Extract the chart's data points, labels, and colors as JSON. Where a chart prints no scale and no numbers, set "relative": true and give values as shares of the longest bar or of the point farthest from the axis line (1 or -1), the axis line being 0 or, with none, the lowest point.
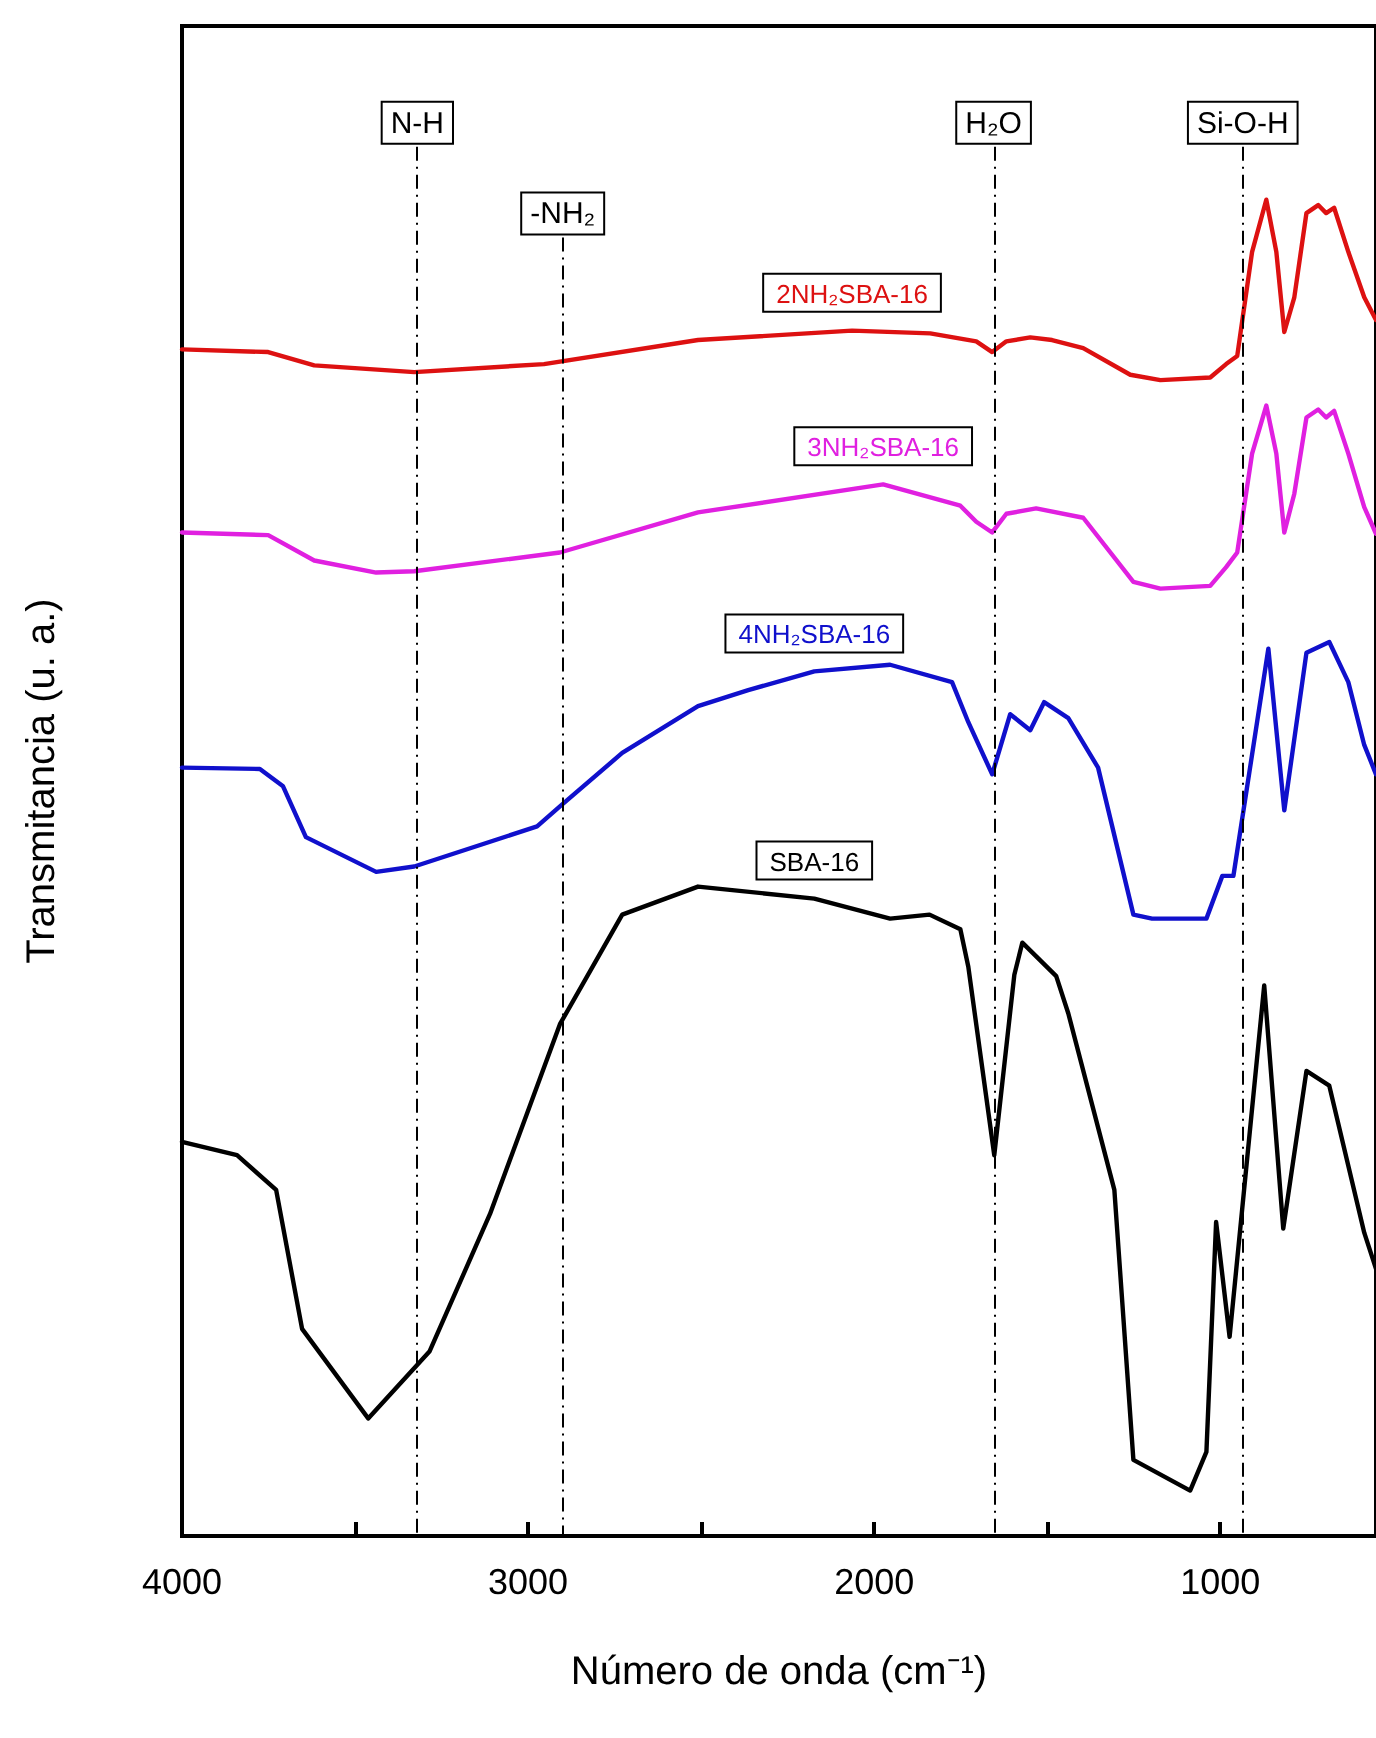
{
  "chart_data": {
    "type": "line",
    "relative": true,
    "xlabel": "Número de onda (cm⁻¹)",
    "ylabel": "Transmitancia (u. a.)",
    "xlim": [
      4000,
      550
    ],
    "xticks": [
      4000,
      {
        "value": 3500,
        "label": null
      },
      3000,
      {
        "value": 2500,
        "label": null
      },
      2000,
      {
        "value": 1500,
        "label": null
      },
      1000
    ],
    "grid": false,
    "legend": false,
    "marker": "none",
    "line_style": "solid",
    "ref_lines": [
      {
        "axis": "x",
        "value": 3320,
        "label": "N-H",
        "color": "#000000",
        "line_style": "dashed"
      },
      {
        "axis": "x",
        "value": 2900,
        "label": "-NH₂",
        "color": "#000000",
        "line_style": "dashed"
      },
      {
        "axis": "x",
        "value": 1655,
        "label": "H₂O",
        "color": "#000000",
        "line_style": "dashed"
      },
      {
        "axis": "x",
        "value": 935,
        "label": "Si-O-H",
        "color": "#000000",
        "line_style": "dashed"
      }
    ],
    "series": [
      {
        "name": "2NH₂SBA-16",
        "color": "#dd1111",
        "x": [
          4000,
          3751,
          3618,
          3329,
          2954,
          2509,
          2064,
          1838,
          1705,
          1659,
          1618,
          1549,
          1486,
          1396,
          1260,
          1173,
          1029,
          983,
          951,
          908,
          867,
          838,
          815,
          786,
          751,
          717,
          694,
          671,
          630,
          584,
          550
        ],
        "values": [
          0.888,
          0.886,
          0.876,
          0.871,
          0.877,
          0.895,
          0.902,
          0.9,
          0.894,
          0.886,
          0.894,
          0.897,
          0.895,
          0.889,
          0.869,
          0.865,
          0.867,
          0.877,
          0.883,
          0.961,
          1,
          0.961,
          0.901,
          0.927,
          0.99,
          0.996,
          0.99,
          0.994,
          0.961,
          0.927,
          0.91
        ]
      },
      {
        "name": "3NH₂SBA-16",
        "color": "#e020e0",
        "x": [
          4000,
          3751,
          3618,
          3439,
          3329,
          2908,
          2509,
          1974,
          1751,
          1705,
          1659,
          1618,
          1532,
          1396,
          1251,
          1173,
          1029,
          983,
          951,
          908,
          867,
          838,
          815,
          786,
          751,
          717,
          694,
          671,
          630,
          584,
          550
        ],
        "values": [
          0.751,
          0.749,
          0.73,
          0.721,
          0.722,
          0.736,
          0.766,
          0.787,
          0.771,
          0.759,
          0.751,
          0.765,
          0.769,
          0.762,
          0.714,
          0.709,
          0.711,
          0.725,
          0.736,
          0.81,
          0.846,
          0.81,
          0.751,
          0.78,
          0.837,
          0.843,
          0.837,
          0.842,
          0.81,
          0.77,
          0.75
        ]
      },
      {
        "name": "4NH₂SBA-16",
        "color": "#1010cc",
        "x": [
          4000,
          3775,
          3708,
          3642,
          3439,
          3329,
          2974,
          2908,
          2728,
          2509,
          2364,
          2173,
          1954,
          1775,
          1728,
          1659,
          1607,
          1549,
          1509,
          1439,
          1353,
          1251,
          1197,
          1040,
          994,
          962,
          861,
          815,
          751,
          685,
          630,
          584,
          550
        ],
        "values": [
          0.575,
          0.574,
          0.561,
          0.523,
          0.497,
          0.501,
          0.531,
          0.546,
          0.586,
          0.621,
          0.633,
          0.647,
          0.652,
          0.639,
          0.609,
          0.57,
          0.615,
          0.603,
          0.624,
          0.612,
          0.575,
          0.465,
          0.462,
          0.462,
          0.494,
          0.494,
          0.664,
          0.543,
          0.661,
          0.669,
          0.639,
          0.592,
          0.57
        ]
      },
      {
        "name": "SBA-16",
        "color": "#000000",
        "x": [
          4000,
          3841,
          3728,
          3653,
          3462,
          3285,
          3110,
          2908,
          2728,
          2509,
          2173,
          1954,
          1840,
          1751,
          1728,
          1653,
          1595,
          1572,
          1474,
          1439,
          1306,
          1251,
          1087,
          1040,
          1012,
          973,
          873,
          818,
          751,
          685,
          584,
          550
        ],
        "values": [
          0.295,
          0.285,
          0.259,
          0.155,
          0.088,
          0.138,
          0.241,
          0.383,
          0.465,
          0.486,
          0.477,
          0.462,
          0.465,
          0.454,
          0.426,
          0.285,
          0.42,
          0.444,
          0.419,
          0.391,
          0.259,
          0.057,
          0.034,
          0.063,
          0.235,
          0.149,
          0.412,
          0.23,
          0.348,
          0.337,
          0.227,
          0.2
        ]
      }
    ]
  }
}
